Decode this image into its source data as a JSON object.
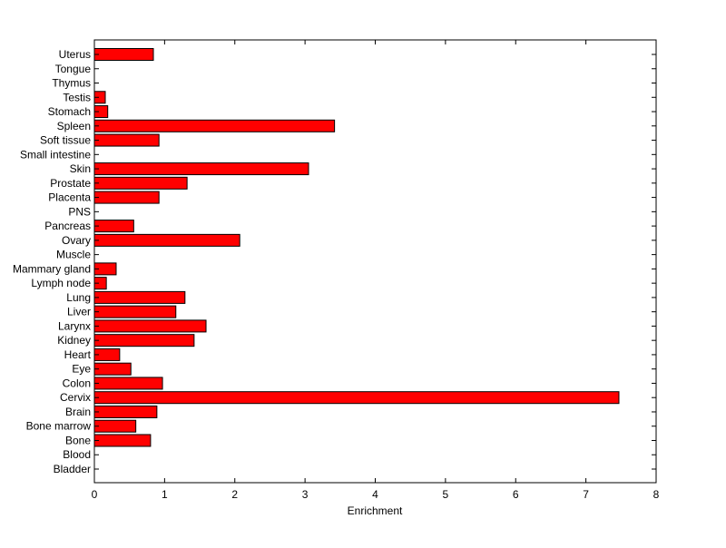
{
  "chart_data": {
    "type": "bar",
    "orientation": "horizontal",
    "title": "",
    "xlabel": "Enrichment",
    "ylabel": "",
    "xlim": [
      0,
      8
    ],
    "xticks": [
      "0",
      "1",
      "2",
      "3",
      "4",
      "5",
      "6",
      "7",
      "8"
    ],
    "grid": false,
    "bar_color": "#ff0000",
    "categories": [
      "Bladder",
      "Blood",
      "Bone",
      "Bone marrow",
      "Brain",
      "Cervix",
      "Colon",
      "Eye",
      "Heart",
      "Kidney",
      "Larynx",
      "Liver",
      "Lung",
      "Lymph node",
      "Mammary gland",
      "Muscle",
      "Ovary",
      "Pancreas",
      "PNS",
      "Placenta",
      "Prostate",
      "Skin",
      "Small intestine",
      "Soft tissue",
      "Spleen",
      "Stomach",
      "Testis",
      "Thymus",
      "Tongue",
      "Uterus"
    ],
    "values": [
      0,
      0,
      0.8,
      0.59,
      0.89,
      7.47,
      0.97,
      0.52,
      0.36,
      1.42,
      1.59,
      1.16,
      1.29,
      0.17,
      0.31,
      0,
      2.07,
      0.56,
      0,
      0.92,
      1.32,
      3.05,
      0,
      0.92,
      3.42,
      0.19,
      0.155,
      0,
      0,
      0.84
    ]
  }
}
